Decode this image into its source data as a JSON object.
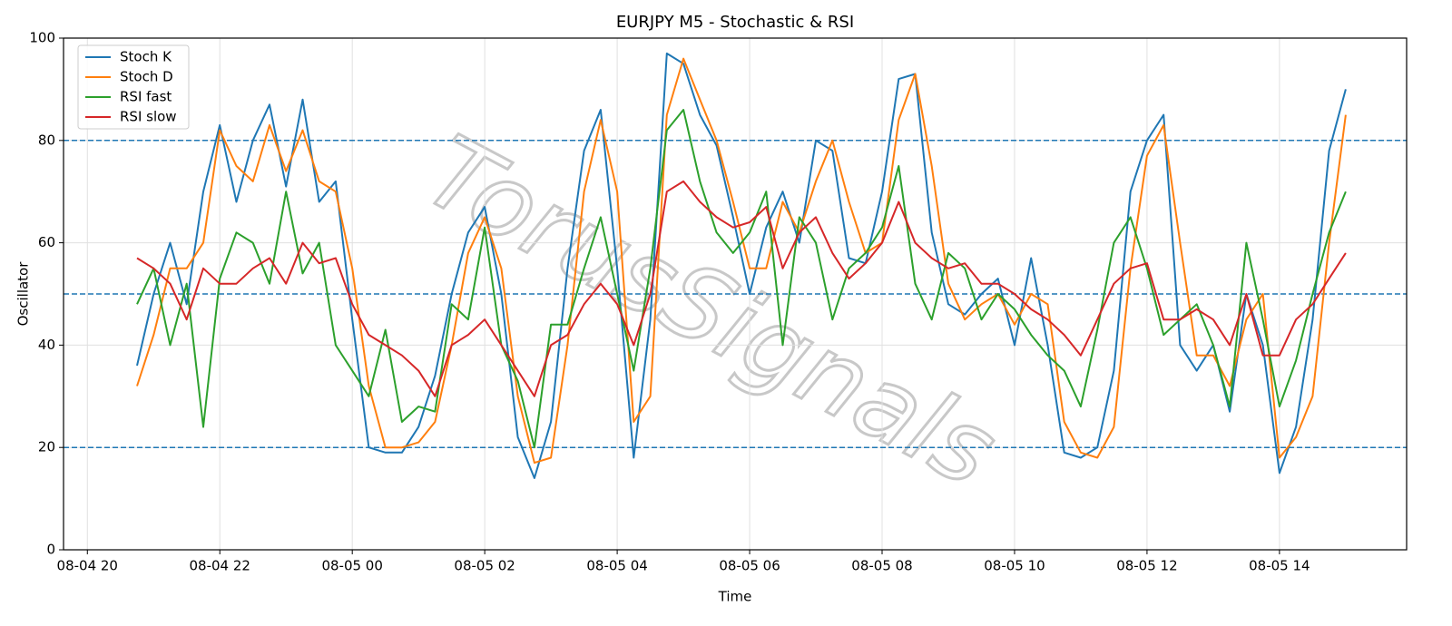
{
  "chart_data": {
    "type": "line",
    "title": "EURJPY M5 - Stochastic & RSI",
    "xlabel": "Time",
    "ylabel": "Oscillator",
    "watermark": "TorusSignals",
    "x": [
      0.75,
      1.0,
      1.25,
      1.5,
      1.75,
      2.0,
      2.25,
      2.5,
      2.75,
      3.0,
      3.25,
      3.5,
      3.75,
      4.0,
      4.25,
      4.5,
      4.75,
      5.0,
      5.25,
      5.5,
      5.75,
      6.0,
      6.25,
      6.5,
      6.75,
      7.0,
      7.25,
      7.5,
      7.75,
      8.0,
      8.25,
      8.5,
      8.75,
      9.0,
      9.25,
      9.5,
      9.75,
      10.0,
      10.25,
      10.5,
      10.75,
      11.0,
      11.25,
      11.5,
      11.75,
      12.0,
      12.25,
      12.5,
      12.75,
      13.0,
      13.25,
      13.5,
      13.75,
      14.0,
      14.25,
      14.5,
      14.75,
      15.0,
      15.25,
      15.5,
      15.75,
      16.0,
      16.25,
      16.5,
      16.75,
      17.0,
      17.25,
      17.5,
      17.75,
      18.0,
      18.25,
      18.5,
      18.75,
      19.0
    ],
    "series": [
      {
        "name": "Stoch K",
        "color": "#1f77b4",
        "values": [
          36,
          50,
          60,
          48,
          70,
          83,
          68,
          80,
          87,
          71,
          88,
          68,
          72,
          45,
          20,
          19,
          19,
          24,
          34,
          50,
          62,
          67,
          50,
          22,
          14,
          25,
          55,
          78,
          86,
          55,
          18,
          45,
          97,
          95,
          85,
          79,
          65,
          50,
          63,
          70,
          60,
          80,
          78,
          57,
          56,
          70,
          92,
          93,
          62,
          48,
          46,
          50,
          53,
          40,
          57,
          40,
          19,
          18,
          20,
          35,
          70,
          80,
          85,
          40,
          35,
          40,
          27,
          50,
          40,
          15,
          24,
          45,
          78,
          90
        ]
      },
      {
        "name": "Stoch D",
        "color": "#ff7f0e",
        "values": [
          32,
          42,
          55,
          55,
          60,
          82,
          75,
          72,
          83,
          74,
          82,
          72,
          70,
          55,
          32,
          20,
          20,
          21,
          25,
          40,
          58,
          65,
          55,
          30,
          17,
          18,
          40,
          70,
          84,
          70,
          25,
          30,
          85,
          96,
          88,
          80,
          68,
          55,
          55,
          68,
          62,
          72,
          80,
          68,
          58,
          60,
          84,
          93,
          75,
          52,
          45,
          48,
          50,
          44,
          50,
          48,
          25,
          19,
          18,
          24,
          55,
          77,
          83,
          60,
          38,
          38,
          32,
          45,
          50,
          18,
          22,
          30,
          60,
          85
        ]
      },
      {
        "name": "RSI fast",
        "color": "#2ca02c",
        "values": [
          48,
          55,
          40,
          52,
          24,
          53,
          62,
          60,
          52,
          70,
          54,
          60,
          40,
          35,
          30,
          43,
          25,
          28,
          27,
          48,
          45,
          63,
          40,
          33,
          20,
          44,
          44,
          55,
          65,
          50,
          35,
          55,
          82,
          86,
          72,
          62,
          58,
          62,
          70,
          40,
          65,
          60,
          45,
          55,
          58,
          63,
          75,
          52,
          45,
          58,
          55,
          45,
          50,
          47,
          42,
          38,
          35,
          28,
          43,
          60,
          65,
          55,
          42,
          45,
          48,
          40,
          28,
          60,
          45,
          28,
          37,
          50,
          62,
          70
        ]
      },
      {
        "name": "RSI slow",
        "color": "#d62728",
        "values": [
          57,
          55,
          52,
          45,
          55,
          52,
          52,
          55,
          57,
          52,
          60,
          56,
          57,
          48,
          42,
          40,
          38,
          35,
          30,
          40,
          42,
          45,
          40,
          35,
          30,
          40,
          42,
          48,
          52,
          48,
          40,
          50,
          70,
          72,
          68,
          65,
          63,
          64,
          67,
          55,
          62,
          65,
          58,
          53,
          56,
          60,
          68,
          60,
          57,
          55,
          56,
          52,
          52,
          50,
          47,
          45,
          42,
          38,
          45,
          52,
          55,
          56,
          45,
          45,
          47,
          45,
          40,
          50,
          38,
          38,
          45,
          48,
          53,
          58
        ]
      }
    ],
    "xlim": [
      -0.36,
      19.92
    ],
    "xticks": [
      {
        "value": 0,
        "label": "08-04 20"
      },
      {
        "value": 2,
        "label": "08-04 22"
      },
      {
        "value": 4,
        "label": "08-05 00"
      },
      {
        "value": 6,
        "label": "08-05 02"
      },
      {
        "value": 8,
        "label": "08-05 04"
      },
      {
        "value": 10,
        "label": "08-05 06"
      },
      {
        "value": 12,
        "label": "08-05 08"
      },
      {
        "value": 14,
        "label": "08-05 10"
      },
      {
        "value": 16,
        "label": "08-05 12"
      },
      {
        "value": 18,
        "label": "08-05 14"
      }
    ],
    "ylim": [
      0,
      100
    ],
    "yticks": [
      0,
      20,
      40,
      60,
      80,
      100
    ],
    "hlines": [
      20,
      50,
      80
    ],
    "hline_color": "#1f77b4",
    "grid": true,
    "legend": "upper left"
  }
}
